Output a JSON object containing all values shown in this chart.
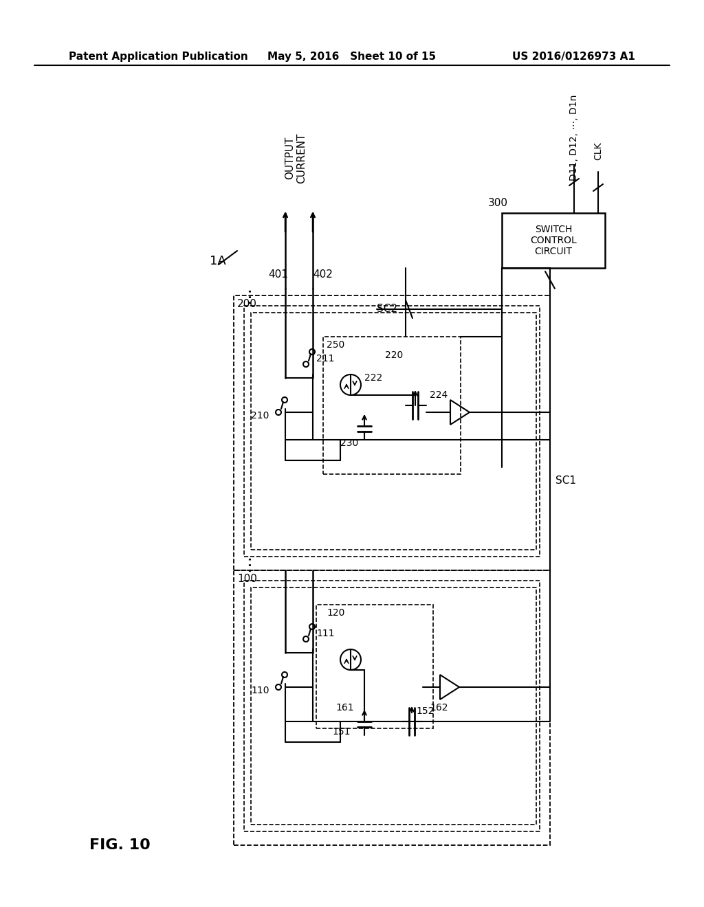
{
  "bg_color": "#ffffff",
  "fig_width": 10.24,
  "fig_height": 13.2,
  "header_left": "Patent Application Publication",
  "header_center": "May 5, 2016   Sheet 10 of 15",
  "header_right": "US 2016/0126973 A1",
  "figure_label": "FIG. 10",
  "diagram_label": "1A"
}
